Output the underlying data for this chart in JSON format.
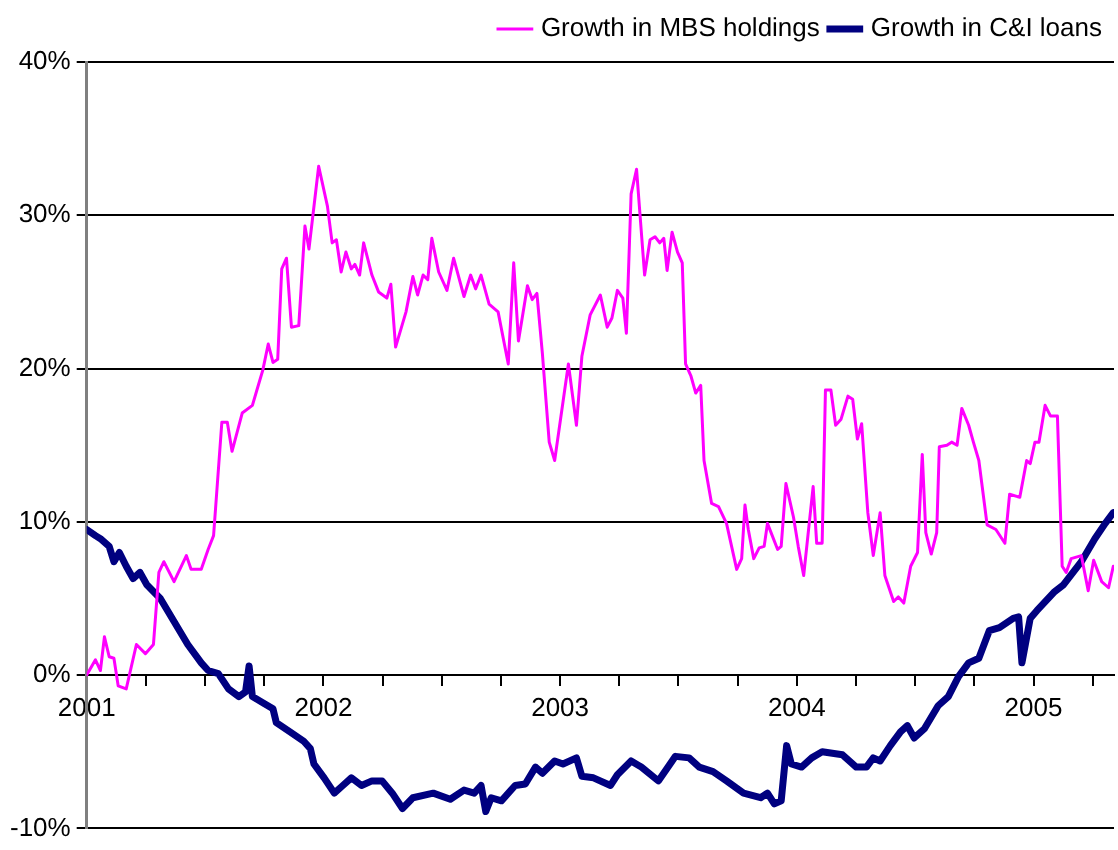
{
  "chart_data": {
    "type": "line",
    "xlim": [
      2001,
      2005.34
    ],
    "xticks": [
      2001,
      {
        "value": 2001.25,
        "label": null
      },
      {
        "value": 2001.5,
        "label": null
      },
      {
        "value": 2001.75,
        "label": null
      },
      2002,
      {
        "value": 2002.25,
        "label": null
      },
      {
        "value": 2002.5,
        "label": null
      },
      {
        "value": 2002.75,
        "label": null
      },
      2003,
      {
        "value": 2003.25,
        "label": null
      },
      {
        "value": 2003.5,
        "label": null
      },
      {
        "value": 2003.75,
        "label": null
      },
      2004,
      {
        "value": 2004.25,
        "label": null
      },
      {
        "value": 2004.5,
        "label": null
      },
      {
        "value": 2004.75,
        "label": null
      },
      2005,
      {
        "value": 2005.25,
        "label": null
      }
    ],
    "ylim": [
      -10,
      40
    ],
    "yticks": [
      {
        "value": -10,
        "label": "-10%"
      },
      {
        "value": 0,
        "label": "0%"
      },
      {
        "value": 10,
        "label": "10%"
      },
      {
        "value": 20,
        "label": "20%"
      },
      {
        "value": 30,
        "label": "30%"
      },
      {
        "value": 40,
        "label": "40%"
      }
    ],
    "grid": "y",
    "legend": "top right",
    "marker": "none",
    "line_style": "solid",
    "series": [
      {
        "name": "Growth in MBS holdings",
        "color": "#ff00ff",
        "x": [
          2001.0,
          2001.037,
          2001.058,
          2001.075,
          2001.095,
          2001.115,
          2001.133,
          2001.167,
          2001.21,
          2001.248,
          2001.282,
          2001.305,
          2001.326,
          2001.369,
          2001.421,
          2001.441,
          2001.484,
          2001.513,
          2001.536,
          2001.571,
          2001.594,
          2001.614,
          2001.657,
          2001.7,
          2001.744,
          2001.767,
          2001.787,
          2001.807,
          2001.824,
          2001.844,
          2001.865,
          2001.896,
          2001.922,
          2001.939,
          2001.98,
          2002.017,
          2002.037,
          2002.055,
          2002.075,
          2002.095,
          2002.118,
          2002.133,
          2002.153,
          2002.17,
          2002.205,
          2002.233,
          2002.268,
          2002.285,
          2002.305,
          2002.349,
          2002.378,
          2002.398,
          2002.421,
          2002.441,
          2002.458,
          2002.487,
          2002.522,
          2002.55,
          2002.594,
          2002.622,
          2002.643,
          2002.666,
          2002.7,
          2002.738,
          2002.781,
          2002.804,
          2002.824,
          2002.862,
          2002.882,
          2002.902,
          2002.925,
          2002.954,
          2002.977,
          2003.035,
          2003.069,
          2003.092,
          2003.127,
          2003.17,
          2003.199,
          2003.219,
          2003.242,
          2003.265,
          2003.28,
          2003.3,
          2003.323,
          2003.357,
          2003.38,
          2003.401,
          2003.421,
          2003.438,
          2003.452,
          2003.473,
          2003.496,
          2003.516,
          2003.53,
          2003.553,
          2003.573,
          2003.594,
          2003.608,
          2003.64,
          2003.669,
          2003.703,
          2003.746,
          2003.767,
          2003.781,
          2003.795,
          2003.818,
          2003.841,
          2003.862,
          2003.876,
          2003.919,
          2003.934,
          2003.954,
          2003.986,
          2004.006,
          2004.029,
          2004.069,
          2004.084,
          2004.107,
          2004.121,
          2004.144,
          2004.164,
          2004.187,
          2004.216,
          2004.236,
          2004.256,
          2004.274,
          2004.3,
          2004.323,
          2004.352,
          2004.372,
          2004.409,
          2004.429,
          2004.452,
          2004.481,
          2004.51,
          2004.53,
          2004.545,
          2004.568,
          2004.591,
          2004.602,
          2004.634,
          2004.654,
          2004.677,
          2004.697,
          2004.726,
          2004.746,
          2004.769,
          2004.804,
          2004.841,
          2004.879,
          2004.899,
          2004.942,
          2004.971,
          2004.986,
          2005.006,
          2005.023,
          2005.049,
          2005.072,
          2005.101,
          2005.121,
          2005.138,
          2005.159,
          2005.202,
          2005.231,
          2005.254,
          2005.288,
          2005.317,
          2005.337
        ],
        "values": [
          0,
          1.0,
          0.3,
          2.5,
          1.2,
          1.1,
          -0.7,
          -0.9,
          2.0,
          1.4,
          2.0,
          6.7,
          7.4,
          6.1,
          7.8,
          6.9,
          6.9,
          8.2,
          9.1,
          16.5,
          16.5,
          14.6,
          17.1,
          17.6,
          19.9,
          21.6,
          20.4,
          20.6,
          26.5,
          27.2,
          22.7,
          22.8,
          29.3,
          27.8,
          33.2,
          30.6,
          28.2,
          28.4,
          26.3,
          27.6,
          26.5,
          26.8,
          26.1,
          28.2,
          26.1,
          25.0,
          24.6,
          25.5,
          21.4,
          23.7,
          26.0,
          24.8,
          26.1,
          25.8,
          28.5,
          26.3,
          25.1,
          27.2,
          24.7,
          26.1,
          25.2,
          26.1,
          24.2,
          23.7,
          20.3,
          26.9,
          21.8,
          25.4,
          24.5,
          24.9,
          21.0,
          15.2,
          14.0,
          20.3,
          16.3,
          20.8,
          23.5,
          24.8,
          22.7,
          23.3,
          25.1,
          24.6,
          22.3,
          31.4,
          33.0,
          26.1,
          28.4,
          28.6,
          28.2,
          28.5,
          26.4,
          28.9,
          27.6,
          26.9,
          20.3,
          19.5,
          18.4,
          18.9,
          14.0,
          11.2,
          11.0,
          9.9,
          6.9,
          7.6,
          11.1,
          9.5,
          7.6,
          8.3,
          8.4,
          9.9,
          8.2,
          8.4,
          12.5,
          10.3,
          8.4,
          6.5,
          12.3,
          8.6,
          8.6,
          18.6,
          18.6,
          16.3,
          16.7,
          18.2,
          18.0,
          15.4,
          16.4,
          10.6,
          7.8,
          10.6,
          6.5,
          4.8,
          5.1,
          4.7,
          7.1,
          8.0,
          14.4,
          9.3,
          7.9,
          9.3,
          14.9,
          15.0,
          15.2,
          15.0,
          17.4,
          16.3,
          15.2,
          14.0,
          9.8,
          9.5,
          8.6,
          11.8,
          11.6,
          14.0,
          13.8,
          15.2,
          15.2,
          17.6,
          16.9,
          16.9,
          7.1,
          6.7,
          7.6,
          7.8,
          5.5,
          7.5,
          6.1,
          5.7,
          7.1
        ]
      },
      {
        "name": "Growth in C&I loans",
        "color": "#000080",
        "x": [
          2001.0,
          2001.037,
          2001.058,
          2001.095,
          2001.115,
          2001.138,
          2001.167,
          2001.196,
          2001.225,
          2001.254,
          2001.311,
          2001.369,
          2001.427,
          2001.484,
          2001.513,
          2001.556,
          2001.599,
          2001.643,
          2001.671,
          2001.686,
          2001.7,
          2001.744,
          2001.787,
          2001.801,
          2001.859,
          2001.916,
          2001.945,
          2001.96,
          2002.003,
          2002.046,
          2002.075,
          2002.118,
          2002.161,
          2002.205,
          2002.248,
          2002.291,
          2002.334,
          2002.378,
          2002.464,
          2002.536,
          2002.594,
          2002.637,
          2002.666,
          2002.686,
          2002.709,
          2002.752,
          2002.81,
          2002.853,
          2002.896,
          2002.925,
          2002.977,
          2003.012,
          2003.069,
          2003.092,
          2003.141,
          2003.213,
          2003.242,
          2003.3,
          2003.343,
          2003.415,
          2003.487,
          2003.545,
          2003.588,
          2003.646,
          2003.703,
          2003.775,
          2003.847,
          2003.876,
          2003.905,
          2003.934,
          2003.957,
          2003.977,
          2004.02,
          2004.063,
          2004.107,
          2004.193,
          2004.251,
          2004.294,
          2004.323,
          2004.352,
          2004.395,
          2004.438,
          2004.467,
          2004.496,
          2004.539,
          2004.597,
          2004.64,
          2004.683,
          2004.726,
          2004.769,
          2004.813,
          2004.856,
          2004.914,
          2004.937,
          2004.951,
          2004.986,
          2005.014,
          2005.086,
          2005.127,
          2005.202,
          2005.259,
          2005.303,
          2005.337
        ],
        "values": [
          9.5,
          9.1,
          8.9,
          8.4,
          7.4,
          8.0,
          7.1,
          6.3,
          6.7,
          5.9,
          5.0,
          3.5,
          2.0,
          0.8,
          0.3,
          0.1,
          -0.9,
          -1.4,
          -1.1,
          0.6,
          -1.4,
          -1.8,
          -2.2,
          -3.1,
          -3.7,
          -4.3,
          -4.8,
          -5.8,
          -6.7,
          -7.7,
          -7.3,
          -6.7,
          -7.2,
          -6.9,
          -6.9,
          -7.7,
          -8.7,
          -8.0,
          -7.7,
          -8.1,
          -7.5,
          -7.7,
          -7.2,
          -8.9,
          -8.0,
          -8.2,
          -7.2,
          -7.1,
          -6.0,
          -6.4,
          -5.6,
          -5.8,
          -5.4,
          -6.6,
          -6.7,
          -7.2,
          -6.5,
          -5.6,
          -6.0,
          -6.9,
          -5.3,
          -5.4,
          -6.0,
          -6.3,
          -6.9,
          -7.7,
          -8.0,
          -7.7,
          -8.4,
          -8.2,
          -4.6,
          -5.8,
          -6.0,
          -5.4,
          -5.0,
          -5.2,
          -6.0,
          -6.0,
          -5.4,
          -5.6,
          -4.6,
          -3.7,
          -3.3,
          -4.1,
          -3.5,
          -2.0,
          -1.4,
          -0.1,
          0.8,
          1.1,
          2.9,
          3.1,
          3.7,
          3.8,
          0.8,
          3.7,
          4.2,
          5.4,
          5.9,
          7.4,
          8.9,
          9.9,
          10.6
        ]
      }
    ]
  }
}
